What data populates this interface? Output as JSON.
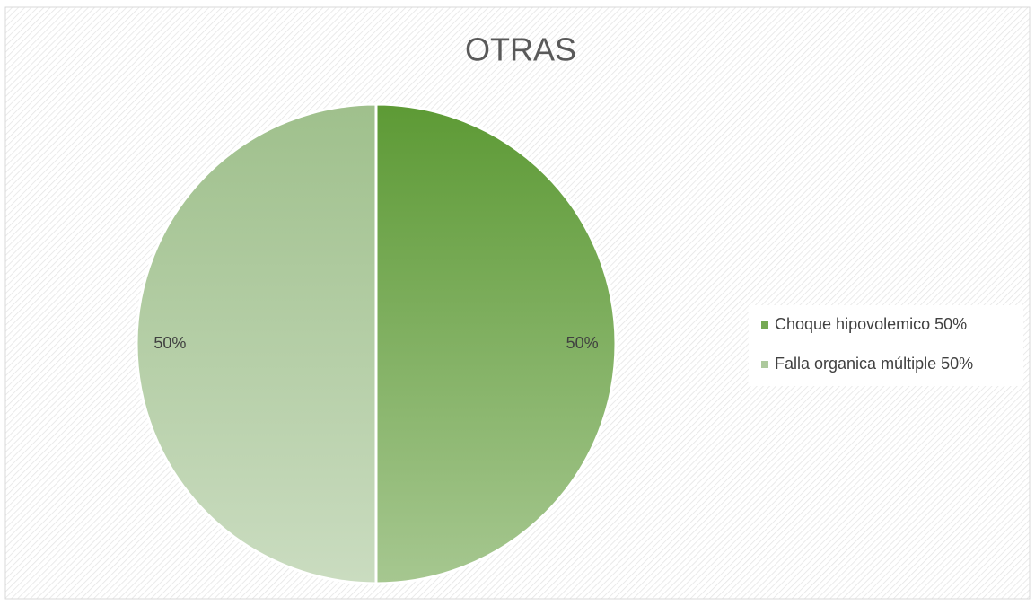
{
  "chart_data": {
    "type": "pie",
    "title": "OTRAS",
    "categories": [
      "Choque hipovolemico 50%",
      "Falla organica múltiple 50%"
    ],
    "values": [
      50,
      50
    ],
    "value_labels": [
      "50%",
      "50%"
    ],
    "colors": [
      "#5d9a35",
      "#9fc08c"
    ],
    "legend": "right"
  }
}
